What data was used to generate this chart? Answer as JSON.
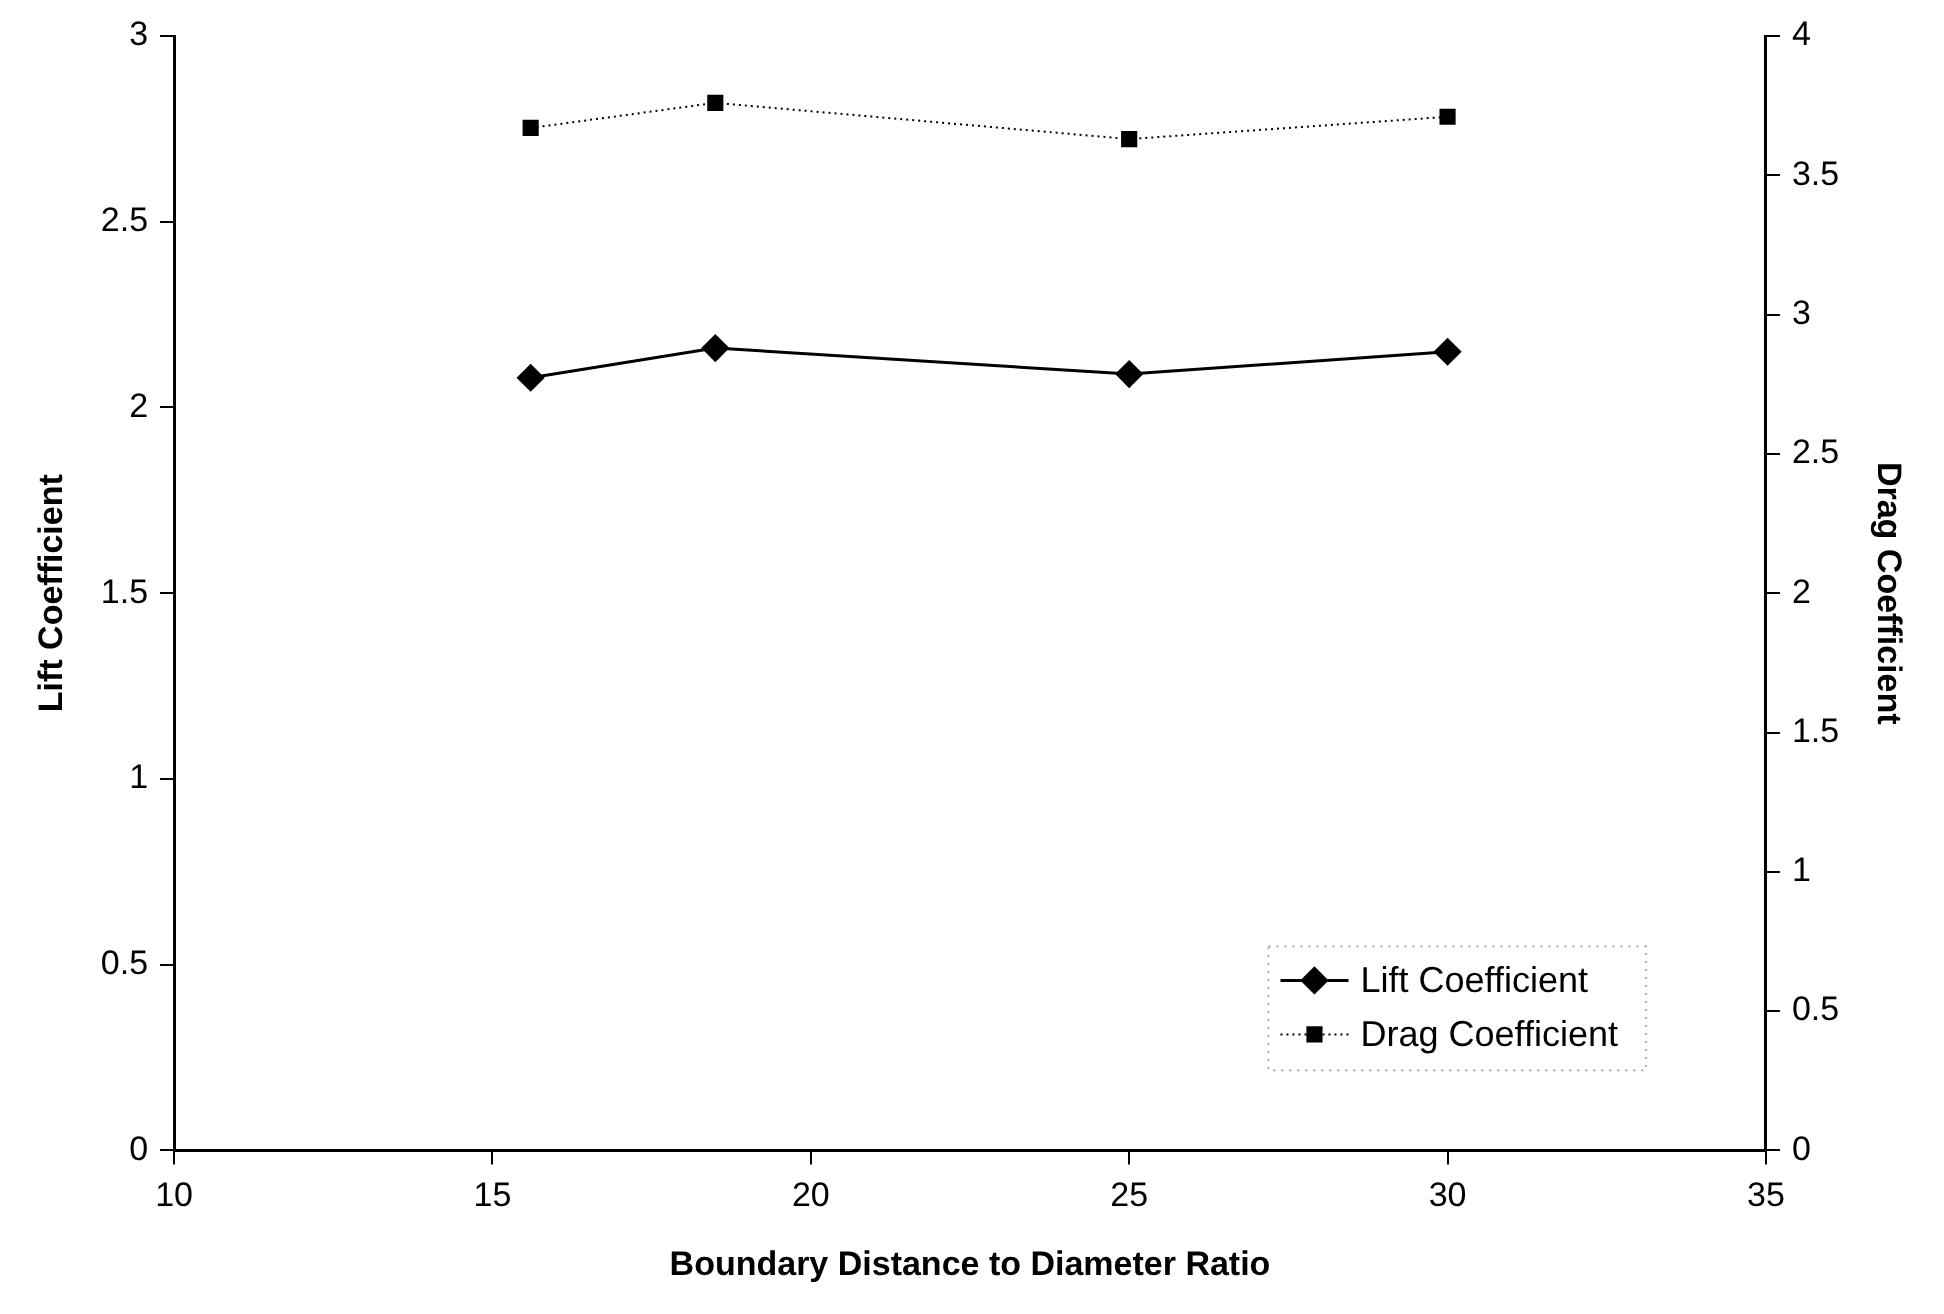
{
  "chart_data": {
    "type": "line",
    "xlabel": "Boundary Distance to Diameter Ratio",
    "ylabel": "Lift Coefficient",
    "y2label": "Drag Coefficient",
    "x": [
      15.6,
      18.5,
      25,
      30
    ],
    "series": [
      {
        "name": "Lift Coefficient",
        "color": "#000000",
        "values": [
          2.08,
          2.16,
          2.09,
          2.15
        ],
        "marker": "diamond",
        "line_style": "solid"
      },
      {
        "name": "Drag Coefficient",
        "color": "#000000",
        "values": [
          3.67,
          3.76,
          3.63,
          3.71
        ],
        "marker": "square",
        "line_style": "dotted",
        "axis": "y2"
      }
    ],
    "xlim": [
      10,
      35
    ],
    "xticks": [
      10,
      15,
      20,
      25,
      30,
      35
    ],
    "ylim": [
      0,
      3
    ],
    "yticks": [
      0,
      0.5,
      1,
      1.5,
      2,
      2.5,
      3
    ],
    "y2lim": [
      0,
      4
    ],
    "y2ticks": [
      0,
      0.5,
      1,
      1.5,
      2,
      2.5,
      3,
      3.5,
      4
    ],
    "grid": false,
    "legend": "bottom right"
  }
}
